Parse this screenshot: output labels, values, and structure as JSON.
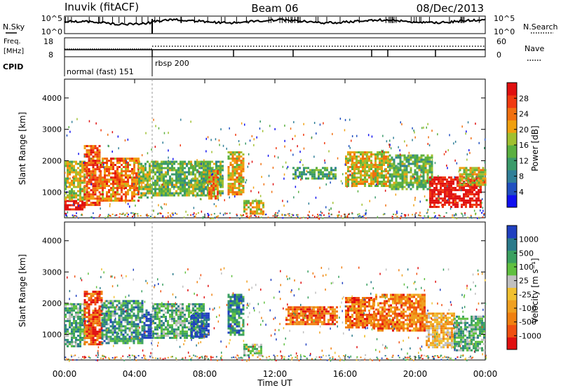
{
  "header": {
    "station": "Inuvik (fitACF)",
    "beam": "Beam 06",
    "date": "08/Dec/2013"
  },
  "status_panels": {
    "nsky_label": "N.Sky",
    "nsearch_label": "N.Search",
    "freq_label_line1": "Freq.",
    "freq_label_line2": "[MHz]",
    "nave_label": "Nave",
    "cpid_label": "CPID",
    "nsky_ticks": [
      "10^5",
      "10^0"
    ],
    "nsearch_ticks": [
      "10^5",
      "10^0"
    ],
    "freq_ticks": [
      "18",
      "8"
    ],
    "nave_ticks": [
      "60",
      "0"
    ],
    "cpid_segments": [
      {
        "label": "normal (fast) 151",
        "start": 0,
        "end": 5
      },
      {
        "label": "rbsp 200",
        "start": 5,
        "end": 24
      }
    ]
  },
  "chart_data": [
    {
      "type": "heatmap",
      "name": "power",
      "xlabel": "Time UT",
      "ylabel": "Slant Range [km]",
      "xlim": [
        0,
        24
      ],
      "ylim": [
        180,
        4600
      ],
      "x_ticks": [
        "00:00",
        "04:00",
        "08:00",
        "12:00",
        "16:00",
        "20:00",
        "00:00"
      ],
      "y_ticks": [
        1000,
        2000,
        3000,
        4000
      ],
      "colorbar": {
        "label": "Power [dB]",
        "ticks": [
          "4",
          "8",
          "12",
          "16",
          "20",
          "24",
          "28"
        ],
        "colors": [
          "#1010f0",
          "#2050c0",
          "#307f98",
          "#3a9a6a",
          "#5ab040",
          "#a0c030",
          "#f0a010",
          "#f07010",
          "#f03a10",
          "#e01010"
        ]
      },
      "features": [
        {
          "t": [
            0.0,
            1.1
          ],
          "r": [
            450,
            750
          ],
          "level": 0.95
        },
        {
          "t": [
            0.0,
            1.1
          ],
          "r": [
            750,
            2000
          ],
          "level": 0.55
        },
        {
          "t": [
            1.1,
            2.0
          ],
          "r": [
            600,
            2500
          ],
          "level": 0.8
        },
        {
          "t": [
            2.0,
            4.2
          ],
          "r": [
            700,
            2100
          ],
          "level": 0.75
        },
        {
          "t": [
            4.2,
            5.0
          ],
          "r": [
            800,
            2000
          ],
          "level": 0.5
        },
        {
          "t": [
            5.0,
            9.0
          ],
          "r": [
            900,
            2000
          ],
          "level": 0.45
        },
        {
          "t": [
            8.2,
            8.8
          ],
          "r": [
            800,
            1700
          ],
          "level": 0.7
        },
        {
          "t": [
            9.3,
            10.2
          ],
          "r": [
            900,
            2300
          ],
          "level": 0.65
        },
        {
          "t": [
            10.2,
            11.3
          ],
          "r": [
            300,
            750
          ],
          "level": 0.6
        },
        {
          "t": [
            13.0,
            15.5
          ],
          "r": [
            1400,
            1800
          ],
          "level": 0.4
        },
        {
          "t": [
            16.0,
            18.5
          ],
          "r": [
            1200,
            2300
          ],
          "level": 0.6
        },
        {
          "t": [
            18.5,
            21.0
          ],
          "r": [
            1100,
            2200
          ],
          "level": 0.45
        },
        {
          "t": [
            20.8,
            23.8
          ],
          "r": [
            500,
            1500
          ],
          "level": 0.97
        },
        {
          "t": [
            22.5,
            24.0
          ],
          "r": [
            1200,
            1800
          ],
          "level": 0.6
        }
      ]
    },
    {
      "type": "heatmap",
      "name": "velocity",
      "xlabel": "Time UT",
      "ylabel": "Slant Range [km]",
      "xlim": [
        0,
        24
      ],
      "ylim": [
        180,
        4600
      ],
      "x_ticks": [
        "00:00",
        "04:00",
        "08:00",
        "12:00",
        "16:00",
        "20:00",
        "00:00"
      ],
      "y_ticks": [
        1000,
        2000,
        3000,
        4000
      ],
      "colorbar": {
        "label": "Velocity [m s⁻¹]",
        "ticks": [
          "1000",
          "500",
          "100",
          "25",
          "-25",
          "-100",
          "-500",
          "-1000"
        ],
        "colors": [
          "#2040c0",
          "#2a7a8a",
          "#3aa060",
          "#60c040",
          "#c0c0c0",
          "#f0c030",
          "#f0a020",
          "#f08010",
          "#f05010",
          "#e01010"
        ]
      },
      "features": [
        {
          "t": [
            0.0,
            1.1
          ],
          "r": [
            600,
            2000
          ],
          "level": 0.3
        },
        {
          "t": [
            1.1,
            2.1
          ],
          "r": [
            700,
            2400
          ],
          "level": 0.85
        },
        {
          "t": [
            2.1,
            4.5
          ],
          "r": [
            700,
            2100
          ],
          "level": 0.25
        },
        {
          "t": [
            4.5,
            5.0
          ],
          "r": [
            900,
            1800
          ],
          "level": 0.05
        },
        {
          "t": [
            5.0,
            8.0
          ],
          "r": [
            900,
            2000
          ],
          "level": 0.3
        },
        {
          "t": [
            7.2,
            8.2
          ],
          "r": [
            900,
            1700
          ],
          "level": 0.05
        },
        {
          "t": [
            9.3,
            10.2
          ],
          "r": [
            1000,
            2300
          ],
          "level": 0.2
        },
        {
          "t": [
            10.2,
            11.2
          ],
          "r": [
            300,
            700
          ],
          "level": 0.35
        },
        {
          "t": [
            12.6,
            15.6
          ],
          "r": [
            1300,
            1900
          ],
          "level": 0.8
        },
        {
          "t": [
            16.0,
            17.6
          ],
          "r": [
            1200,
            2200
          ],
          "level": 0.8
        },
        {
          "t": [
            17.6,
            20.6
          ],
          "r": [
            1100,
            2300
          ],
          "level": 0.75
        },
        {
          "t": [
            20.6,
            22.2
          ],
          "r": [
            600,
            1700
          ],
          "level": 0.6
        },
        {
          "t": [
            22.2,
            24.0
          ],
          "r": [
            500,
            1600
          ],
          "level": 0.3
        }
      ]
    }
  ]
}
